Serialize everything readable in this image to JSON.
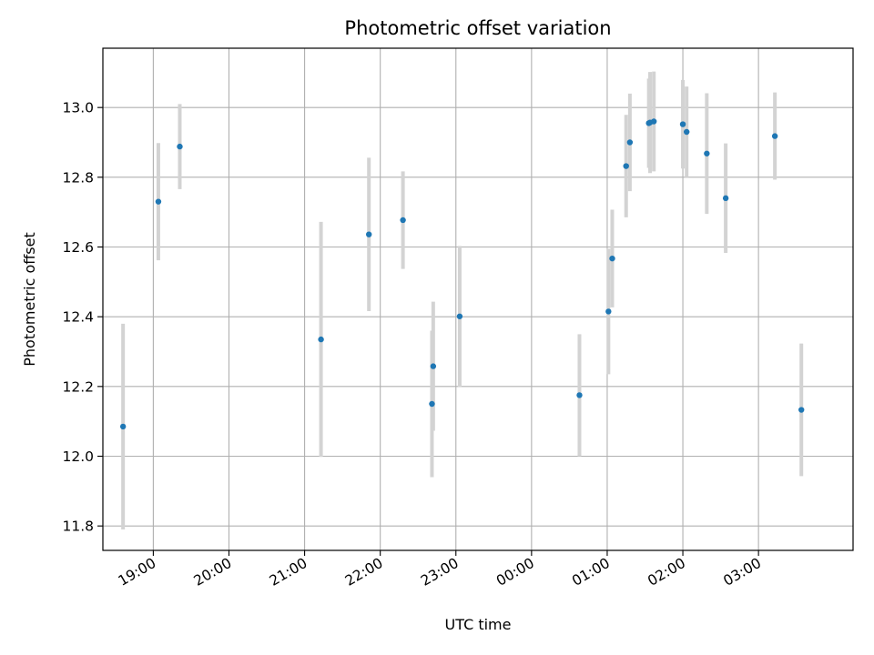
{
  "chart_data": {
    "type": "scatter",
    "title": "Photometric offset variation",
    "xlabel": "UTC time",
    "ylabel": "Photometric offset",
    "grid": true,
    "legend": "none",
    "x_axis_type": "time",
    "x_range": [
      "18:20",
      "04:15"
    ],
    "ylim": [
      11.73,
      13.17
    ],
    "x_ticks": [
      "19:00",
      "20:00",
      "21:00",
      "22:00",
      "23:00",
      "00:00",
      "01:00",
      "02:00",
      "03:00"
    ],
    "y_ticks": [
      11.8,
      12.0,
      12.2,
      12.4,
      12.6,
      12.8,
      13.0
    ],
    "marker_color": "#1f77b4",
    "errorbar_color": "#d3d3d3",
    "grid_color": "#b0b0b0",
    "series": [
      {
        "points": [
          {
            "x": "18:36",
            "y": 12.085,
            "err": 0.295
          },
          {
            "x": "19:04",
            "y": 12.73,
            "err": 0.168
          },
          {
            "x": "19:21",
            "y": 12.888,
            "err": 0.122
          },
          {
            "x": "21:13",
            "y": 12.335,
            "err": 0.337
          },
          {
            "x": "21:51",
            "y": 12.636,
            "err": 0.22
          },
          {
            "x": "22:18",
            "y": 12.677,
            "err": 0.14
          },
          {
            "x": "22:41",
            "y": 12.15,
            "err": 0.21
          },
          {
            "x": "22:42",
            "y": 12.258,
            "err": 0.185
          },
          {
            "x": "23:03",
            "y": 12.401,
            "err": 0.202
          },
          {
            "x": "00:38",
            "y": 12.175,
            "err": 0.175
          },
          {
            "x": "01:01",
            "y": 12.415,
            "err": 0.18
          },
          {
            "x": "01:04",
            "y": 12.567,
            "err": 0.14
          },
          {
            "x": "01:15",
            "y": 12.832,
            "err": 0.147
          },
          {
            "x": "01:18",
            "y": 12.9,
            "err": 0.14
          },
          {
            "x": "01:33",
            "y": 12.955,
            "err": 0.128
          },
          {
            "x": "01:34",
            "y": 12.957,
            "err": 0.145
          },
          {
            "x": "01:37",
            "y": 12.96,
            "err": 0.143
          },
          {
            "x": "02:00",
            "y": 12.952,
            "err": 0.127
          },
          {
            "x": "02:03",
            "y": 12.93,
            "err": 0.13
          },
          {
            "x": "02:19",
            "y": 12.868,
            "err": 0.173
          },
          {
            "x": "02:34",
            "y": 12.74,
            "err": 0.157
          },
          {
            "x": "03:13",
            "y": 12.918,
            "err": 0.125
          },
          {
            "x": "03:34",
            "y": 12.133,
            "err": 0.19
          }
        ]
      }
    ]
  }
}
